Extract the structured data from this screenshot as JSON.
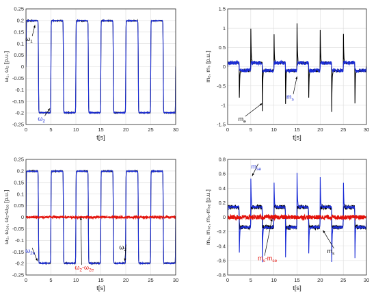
{
  "colors": {
    "blue": "#1a2cd6",
    "black": "#000000",
    "red": "#e3120b",
    "grid": "#dcdcdc"
  },
  "chart_data": [
    {
      "type": "line",
      "xlabel": "t[s]",
      "ylabel": "ω₁, ω₂ [p.u.]",
      "xlim": [
        0,
        30
      ],
      "ylim": [
        -0.25,
        0.25
      ],
      "xticks": [
        "0",
        "5",
        "10",
        "15",
        "20",
        "25",
        "30"
      ],
      "yticks": [
        "-0.25",
        "-0.2",
        "-0.15",
        "-0.1",
        "-0.05",
        "0",
        "0.05",
        "0.1",
        "0.15",
        "0.2",
        "0.25"
      ],
      "grid": true,
      "series": [
        {
          "name": "ω1",
          "color": "#000000",
          "shape": "square",
          "amplitude": 0.2,
          "period_s": 5,
          "first_high_s": [
            0,
            2.5
          ]
        },
        {
          "name": "ω2",
          "color": "#1a2cd6",
          "shape": "square",
          "amplitude": 0.2,
          "period_s": 5,
          "first_high_s": [
            0,
            2.5
          ]
        }
      ],
      "annotations": [
        {
          "text": "ω",
          "sub": "1",
          "x": 0.7,
          "y": 0.12,
          "color": "#000000",
          "arrow_to": [
            1.8,
            0.18
          ]
        },
        {
          "text": "ω",
          "sub": "2",
          "x": 3.2,
          "y": -0.225,
          "color": "#1a2cd6",
          "arrow_to": [
            4.8,
            -0.18
          ]
        }
      ]
    },
    {
      "type": "line",
      "xlabel": "t[s]",
      "ylabel": "mₑ, mₛ [p.u.]",
      "xlim": [
        0,
        30
      ],
      "ylim": [
        -1.5,
        1.5
      ],
      "xticks": [
        "0",
        "5",
        "10",
        "15",
        "20",
        "25",
        "30"
      ],
      "yticks": [
        "-1.5",
        "-1",
        "-0.5",
        "0",
        "0.5",
        "1",
        "1.5"
      ],
      "grid": true,
      "series": [
        {
          "name": "me",
          "color": "#000000",
          "level": 0.1,
          "spike": 1.15,
          "spike_times_s": [
            2.5,
            5,
            7.5,
            10,
            12.5,
            15,
            17.5,
            20,
            22.5,
            25,
            27.5
          ]
        },
        {
          "name": "ms",
          "color": "#1a2cd6",
          "level": 0.1,
          "noise": 0.05
        }
      ],
      "annotations": [
        {
          "text": "m",
          "sub": "s",
          "x": 13.6,
          "y": -0.78,
          "color": "#1a2cd6",
          "arrow_to": [
            15.0,
            -0.25
          ]
        },
        {
          "text": "m",
          "sub": "e",
          "x": 3.2,
          "y": -1.36,
          "color": "#000000",
          "arrow_to": [
            7.5,
            -0.95
          ]
        }
      ]
    },
    {
      "type": "line",
      "xlabel": "t[s]",
      "ylabel": "ω₂, ω₂ₑ, ω₂-ω₂ₑ [p.u.]",
      "xlim": [
        0,
        30
      ],
      "ylim": [
        -0.25,
        0.25
      ],
      "xticks": [
        "0",
        "5",
        "10",
        "15",
        "20",
        "25",
        "30"
      ],
      "yticks": [
        "-0.25",
        "-0.2",
        "-0.15",
        "-0.1",
        "-0.05",
        "0",
        "0.05",
        "0.1",
        "0.15",
        "0.2",
        "0.25"
      ],
      "grid": true,
      "series": [
        {
          "name": "ω2",
          "color": "#000000",
          "shape": "square",
          "amplitude": 0.2,
          "period_s": 5
        },
        {
          "name": "ω2e",
          "color": "#1a2cd6",
          "shape": "square",
          "amplitude": 0.2,
          "period_s": 5
        },
        {
          "name": "ω2-ω2e",
          "color": "#e3120b",
          "level": 0.0,
          "noise": 0.004
        }
      ],
      "annotations": [
        {
          "text": "ω",
          "sub": "2e",
          "x": 0.7,
          "y": -0.145,
          "color": "#1a2cd6",
          "arrow_to": [
            2.3,
            -0.19
          ]
        },
        {
          "text": "ω",
          "sub": "2",
          "x": 19.5,
          "y": -0.13,
          "color": "#000000",
          "arrow_to": [
            19.8,
            -0.19
          ]
        },
        {
          "text": "ω",
          "sub": "2",
          "mid": "-ω",
          "sub2": "2e",
          "x": 10.6,
          "y": -0.218,
          "color": "#e3120b",
          "arrow_to": [
            11.0,
            0.0
          ]
        }
      ]
    },
    {
      "type": "line",
      "xlabel": "t[s]",
      "ylabel": "mₛ, mₛₑ, mₛ-mₛₑ [p.u.]",
      "xlim": [
        0,
        30
      ],
      "ylim": [
        -0.8,
        0.8
      ],
      "xticks": [
        "0",
        "5",
        "10",
        "15",
        "20",
        "25",
        "30"
      ],
      "yticks": [
        "-0.8",
        "-0.6",
        "-0.4",
        "-0.2",
        "0",
        "0.2",
        "0.4",
        "0.6",
        "0.8"
      ],
      "grid": true,
      "series": [
        {
          "name": "ms",
          "color": "#000000",
          "level": 0.14,
          "noise": 0.03
        },
        {
          "name": "mse",
          "color": "#1a2cd6",
          "level": 0.14,
          "spike": 0.62,
          "spike_times_s": [
            2.5,
            5,
            7.5,
            10,
            12.5,
            15,
            17.5,
            20,
            22.5,
            25,
            27.5
          ]
        },
        {
          "name": "ms-mse",
          "color": "#e3120b",
          "level": 0.0,
          "noise": 0.03
        }
      ],
      "annotations": [
        {
          "text": "m",
          "sub": "se",
          "x": 6.0,
          "y": 0.7,
          "color": "#1a2cd6",
          "arrow_to": [
            5.3,
            0.57
          ]
        },
        {
          "text": "m",
          "sub": "s",
          "mid": "-m",
          "sub2": "se",
          "x": 7.4,
          "y": -0.57,
          "color": "#e3120b",
          "arrow_to": [
            9.6,
            -0.02
          ]
        },
        {
          "text": "m",
          "sub": "s",
          "x": 22.4,
          "y": -0.47,
          "color": "#000000",
          "arrow_to": [
            20.6,
            -0.18
          ]
        }
      ]
    }
  ]
}
